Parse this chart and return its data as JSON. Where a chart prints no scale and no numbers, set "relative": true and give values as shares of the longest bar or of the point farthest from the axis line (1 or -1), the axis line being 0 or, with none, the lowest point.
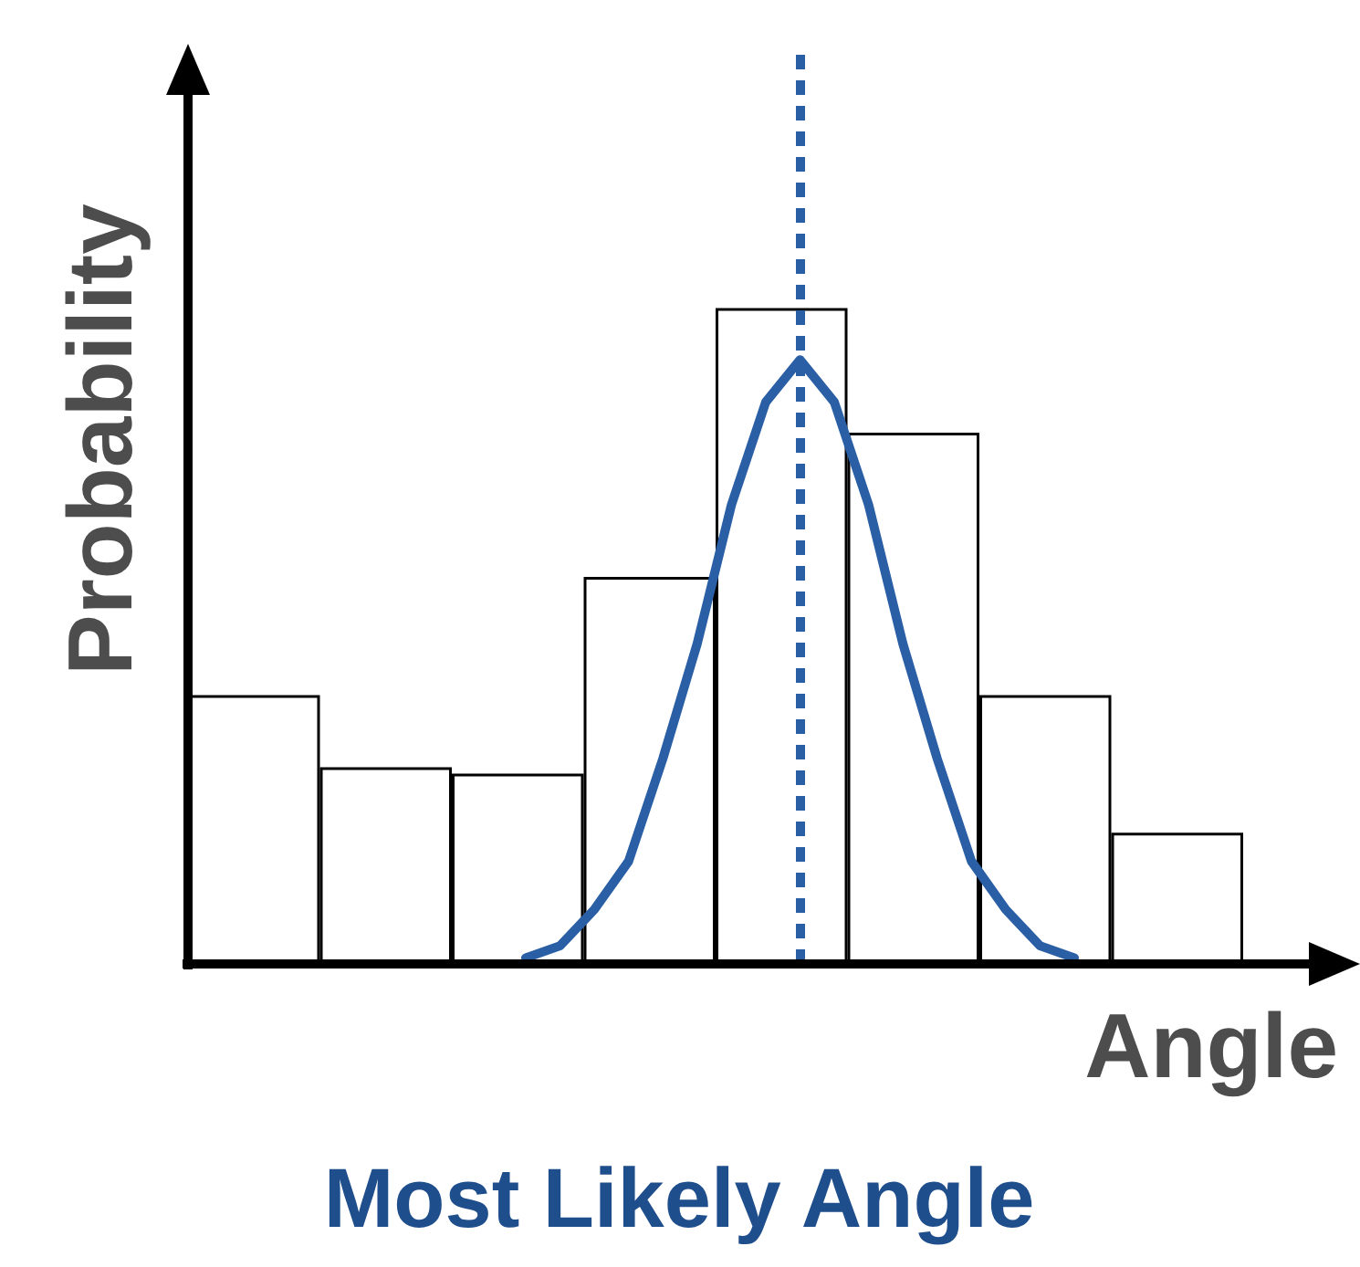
{
  "chart_data": [
    {
      "type": "bar",
      "relative": true,
      "xlabel": "Angle",
      "ylabel": "Probability",
      "categories": [
        null,
        null,
        null,
        null,
        null,
        null,
        null,
        null
      ],
      "series": [
        {
          "color": "#ffffff",
          "values": [
            0.41,
            0.3,
            0.29,
            0.59,
            1,
            0.81,
            0.41,
            0.2
          ]
        }
      ]
    },
    {
      "type": "line",
      "relative": true,
      "marker": "none",
      "categories": [
        null,
        null,
        null,
        null,
        null,
        null,
        null,
        null,
        null,
        null,
        null,
        null,
        null,
        null,
        null,
        null,
        null
      ],
      "series": [
        {
          "color": "#2a5fa5",
          "values": [
            0.01,
            0.03,
            0.09,
            0.17,
            0.34,
            0.53,
            0.76,
            0.93,
            1,
            0.93,
            0.76,
            0.53,
            0.34,
            0.17,
            0.09,
            0.03,
            0.01
          ]
        }
      ],
      "ref_lines": [
        {
          "axis": "x",
          "label": "Most Likely Angle",
          "color": "#2a5fa5",
          "line_style": "dashed"
        }
      ]
    }
  ]
}
